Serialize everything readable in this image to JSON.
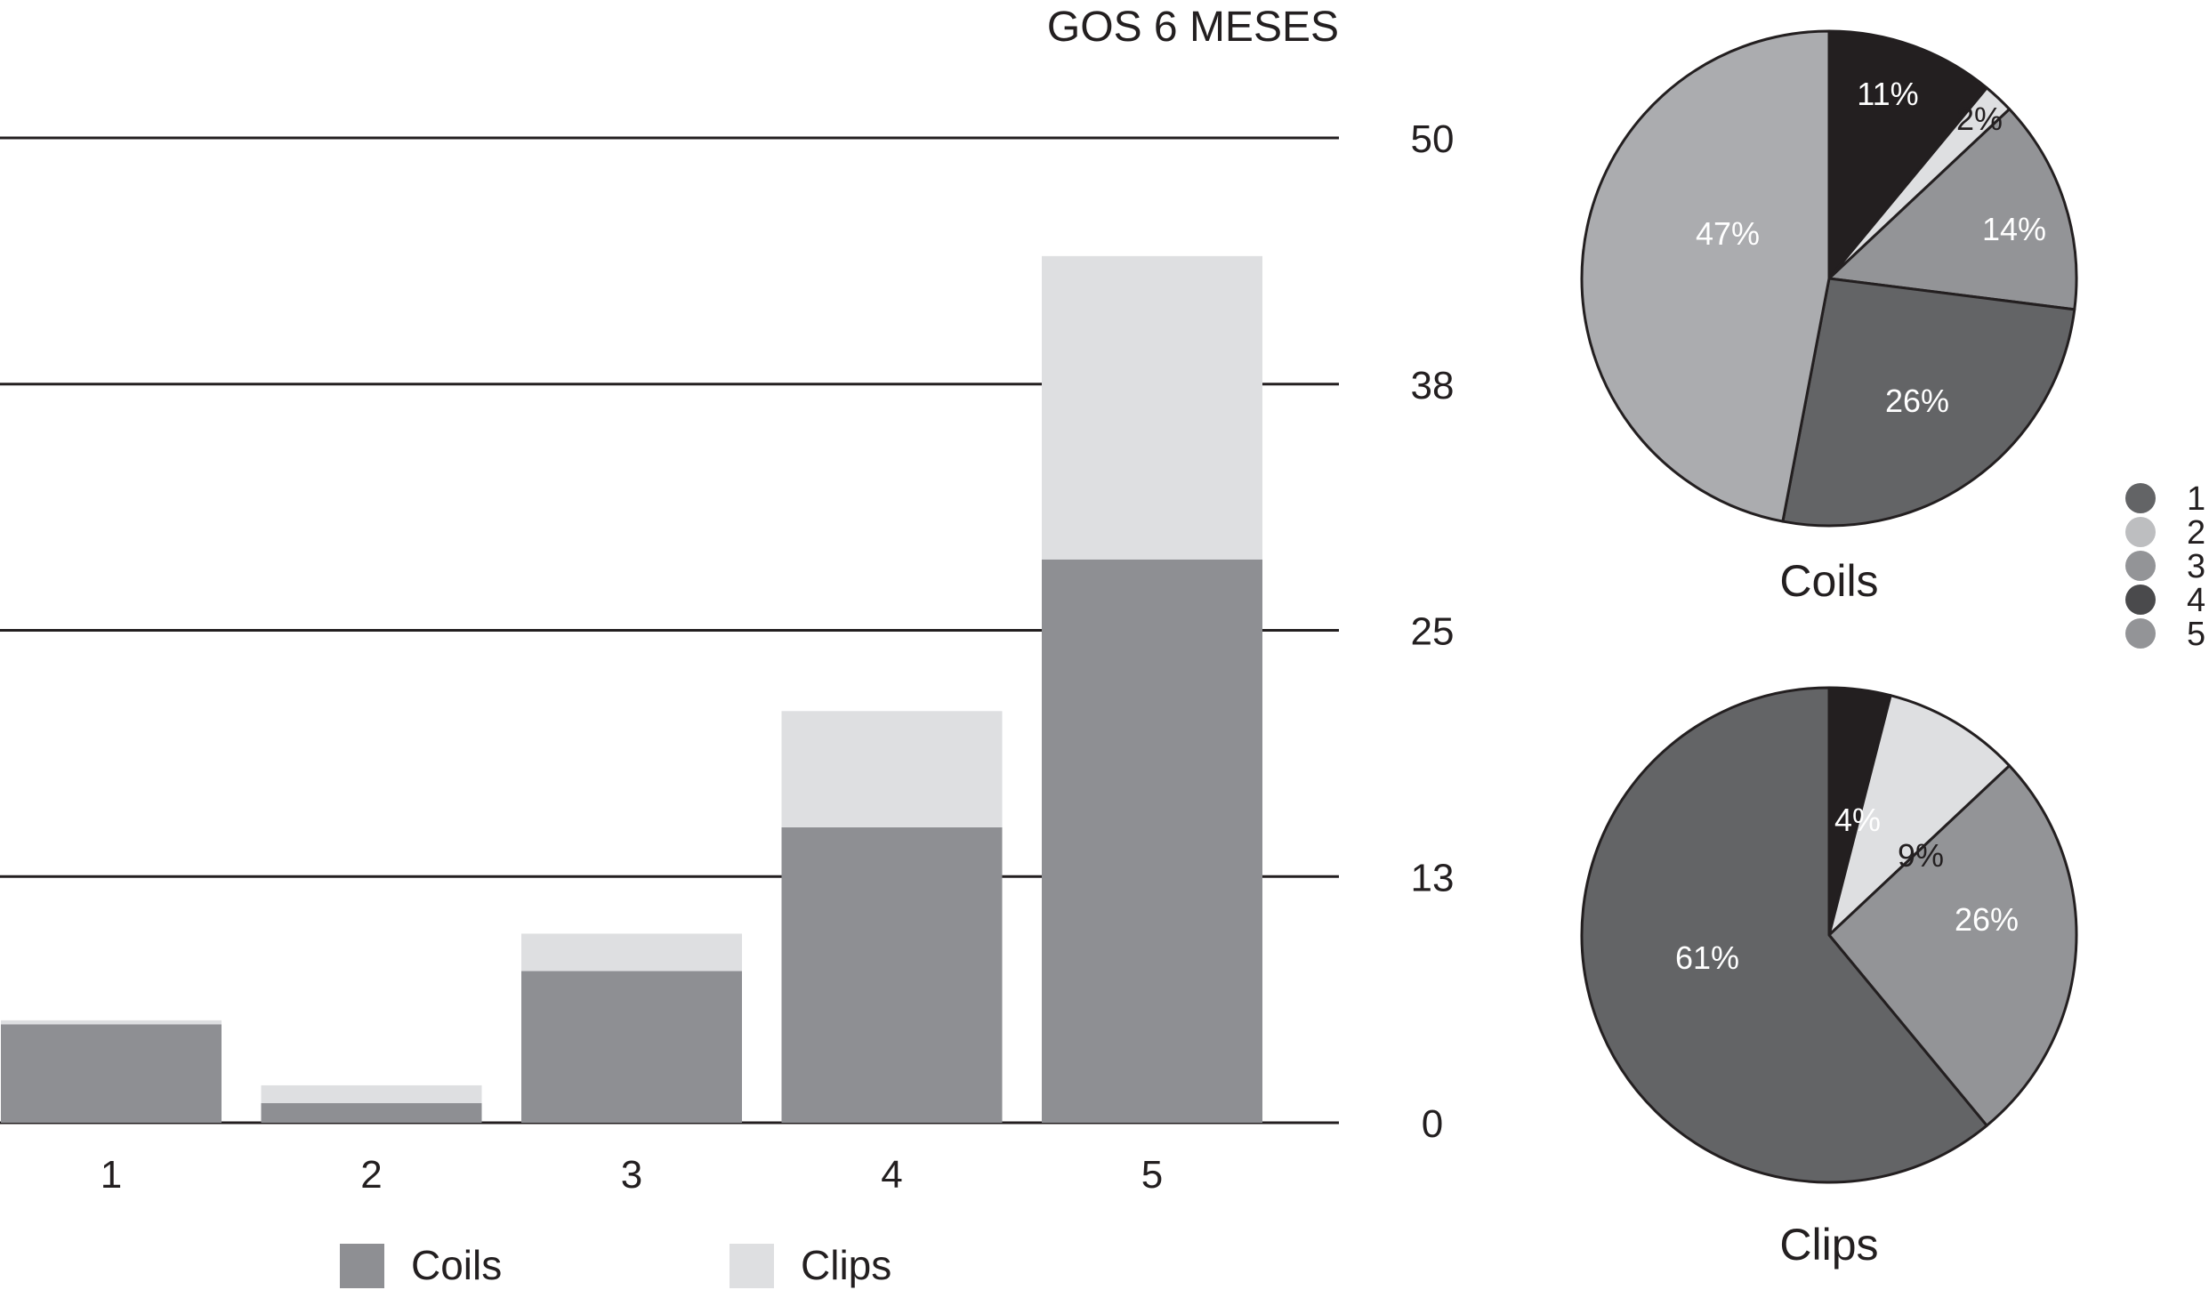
{
  "chart_data": [
    {
      "type": "bar",
      "stacked": true,
      "title": "GOS 6 MESES",
      "categories": [
        "1",
        "2",
        "3",
        "4",
        "5"
      ],
      "series": [
        {
          "name": "Coils",
          "color": "#8e8f93",
          "values": [
            5,
            1,
            7.7,
            15,
            28.6
          ]
        },
        {
          "name": "Clips",
          "color": "#dedfe1",
          "values": [
            0.2,
            0.9,
            1.9,
            5.9,
            15.4
          ]
        }
      ],
      "ylim": [
        0,
        50
      ],
      "y_ticks": [
        "0",
        "13",
        "25",
        "38",
        "50"
      ],
      "y_axis_side": "right",
      "grid": true,
      "legend_position": "bottom"
    },
    {
      "type": "pie",
      "title": "Coils",
      "slices": [
        {
          "category": "4",
          "value": 11,
          "label": "11%",
          "color": "#231f20"
        },
        {
          "category": "2",
          "value": 2,
          "label": "2%",
          "color": "#dedfe1"
        },
        {
          "category": "3",
          "value": 14,
          "label": "14%",
          "color": "#939497"
        },
        {
          "category": "1",
          "value": 26,
          "label": "26%",
          "color": "#636466"
        },
        {
          "category": "5",
          "value": 47,
          "label": "47%",
          "color": "#abacaf"
        }
      ]
    },
    {
      "type": "pie",
      "title": "Clips",
      "slices": [
        {
          "category": "4",
          "value": 4,
          "label": "4%",
          "color": "#231f20"
        },
        {
          "category": "2",
          "value": 9,
          "label": "9%",
          "color": "#dedfe1"
        },
        {
          "category": "3",
          "value": 26,
          "label": "26%",
          "color": "#939497"
        },
        {
          "category": "1",
          "value": 61,
          "label": "61%",
          "color": "#636466"
        }
      ]
    }
  ],
  "pie_legend": {
    "items": [
      {
        "label": "1",
        "color": "#636466"
      },
      {
        "label": "2",
        "color": "#bdbec0"
      },
      {
        "label": "3",
        "color": "#939497"
      },
      {
        "label": "4",
        "color": "#4a4a4c"
      },
      {
        "label": "5",
        "color": "#939497"
      }
    ]
  }
}
